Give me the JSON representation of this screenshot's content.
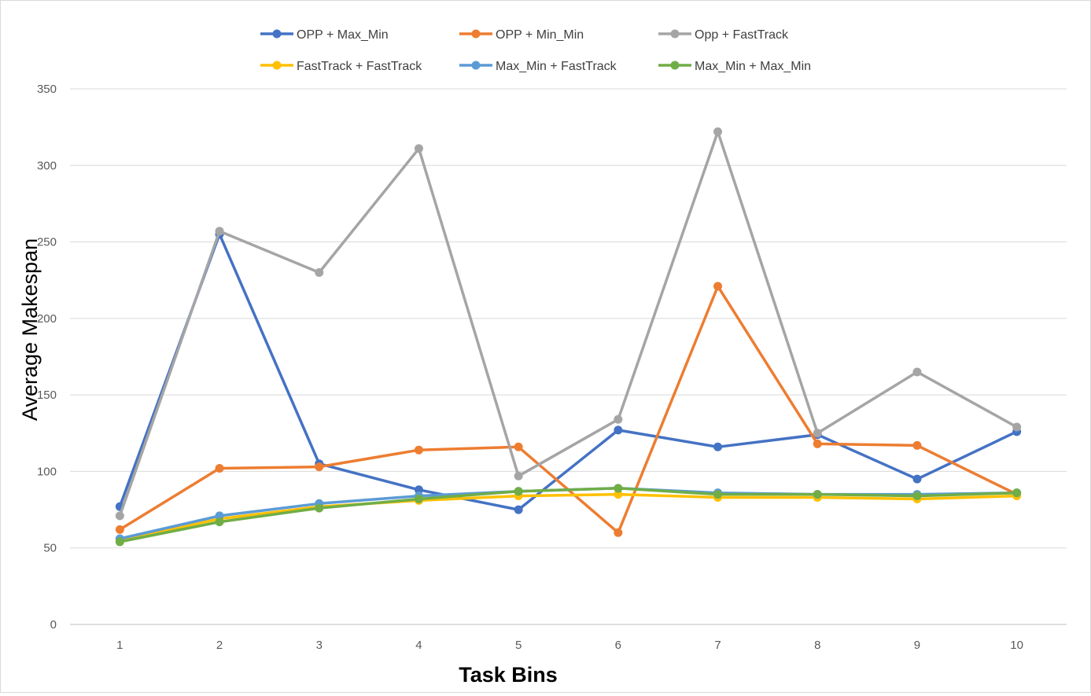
{
  "chart_data": {
    "type": "line",
    "title": "",
    "xlabel": "Task Bins",
    "ylabel": "Average Makespan",
    "x": [
      1,
      2,
      3,
      4,
      5,
      6,
      7,
      8,
      9,
      10
    ],
    "ylim": [
      0,
      350
    ],
    "yticks": [
      0,
      50,
      100,
      150,
      200,
      250,
      300,
      350
    ],
    "grid": true,
    "legend_position": "top",
    "series": [
      {
        "name": "OPP + Max_Min",
        "color": "#4472c4",
        "values": [
          77,
          255,
          105,
          88,
          75,
          127,
          116,
          124,
          95,
          126
        ]
      },
      {
        "name": "OPP + Min_Min",
        "color": "#ed7d31",
        "values": [
          62,
          102,
          103,
          114,
          116,
          60,
          221,
          118,
          117,
          85
        ]
      },
      {
        "name": "Opp + FastTrack",
        "color": "#a5a5a5",
        "values": [
          71,
          257,
          230,
          311,
          97,
          134,
          322,
          125,
          165,
          129
        ]
      },
      {
        "name": "FastTrack + FastTrack",
        "color": "#ffc000",
        "values": [
          55,
          69,
          77,
          81,
          84,
          85,
          83,
          83,
          82,
          84
        ]
      },
      {
        "name": "Max_Min + FastTrack",
        "color": "#5b9bd5",
        "values": [
          56,
          71,
          79,
          84,
          87,
          89,
          86,
          85,
          85,
          86
        ]
      },
      {
        "name": "Max_Min + Max_Min",
        "color": "#70ad47",
        "values": [
          54,
          67,
          76,
          82,
          87,
          89,
          85,
          85,
          84,
          86
        ]
      }
    ]
  }
}
